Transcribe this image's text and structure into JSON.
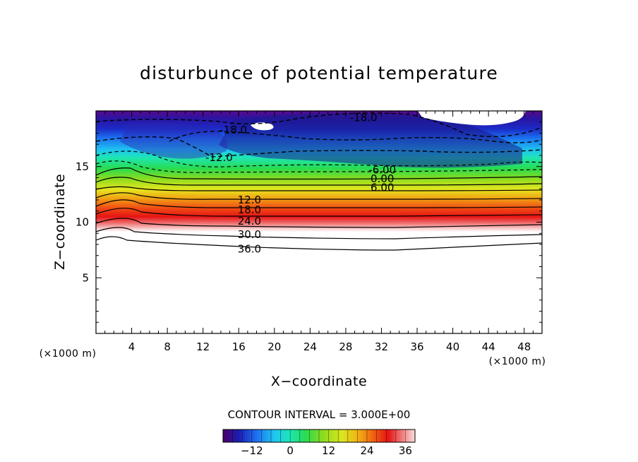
{
  "chart_data": {
    "type": "heatmap",
    "title": "disturbunce of potential temperature",
    "xlabel": "X−coordinate",
    "ylabel": "Z−coordinate",
    "x_unit": "(×1000 m)",
    "y_unit": "(×1000 m)",
    "xlim": [
      0,
      50
    ],
    "ylim": [
      0,
      20
    ],
    "x_ticks": [
      4,
      8,
      12,
      16,
      20,
      24,
      28,
      32,
      36,
      40,
      44,
      48
    ],
    "y_ticks": [
      5,
      10,
      15
    ],
    "contour_interval_text": "CONTOUR INTERVAL = 3.000E+00",
    "colorbar": {
      "range": [
        -21,
        39
      ],
      "ticks": [
        -12,
        0,
        12,
        24,
        36
      ],
      "colors": [
        "#4b0066",
        "#1c1cb0",
        "#1e6cf0",
        "#1ec8f0",
        "#1ee6b4",
        "#28dc50",
        "#8cdc1e",
        "#dce61e",
        "#f0b414",
        "#f06414",
        "#e61414",
        "#f07878",
        "#fadcdc"
      ]
    },
    "contour_labels": [
      {
        "text": "-18.0",
        "x": 30.0,
        "z": 19.4
      },
      {
        "text": "-18.0",
        "x": 15.4,
        "z": 18.3
      },
      {
        "text": "-12.0",
        "x": 13.8,
        "z": 15.8
      },
      {
        "text": "-6.00",
        "x": 32.1,
        "z": 14.7
      },
      {
        "text": "0.00",
        "x": 32.1,
        "z": 13.9
      },
      {
        "text": "6.00",
        "x": 32.1,
        "z": 13.1
      },
      {
        "text": "12.0",
        "x": 17.2,
        "z": 12.0
      },
      {
        "text": "18.0",
        "x": 17.2,
        "z": 11.1
      },
      {
        "text": "24.0",
        "x": 17.2,
        "z": 10.1
      },
      {
        "text": "30.0",
        "x": 17.2,
        "z": 8.9
      },
      {
        "text": "36.0",
        "x": 17.2,
        "z": 7.6
      }
    ]
  }
}
